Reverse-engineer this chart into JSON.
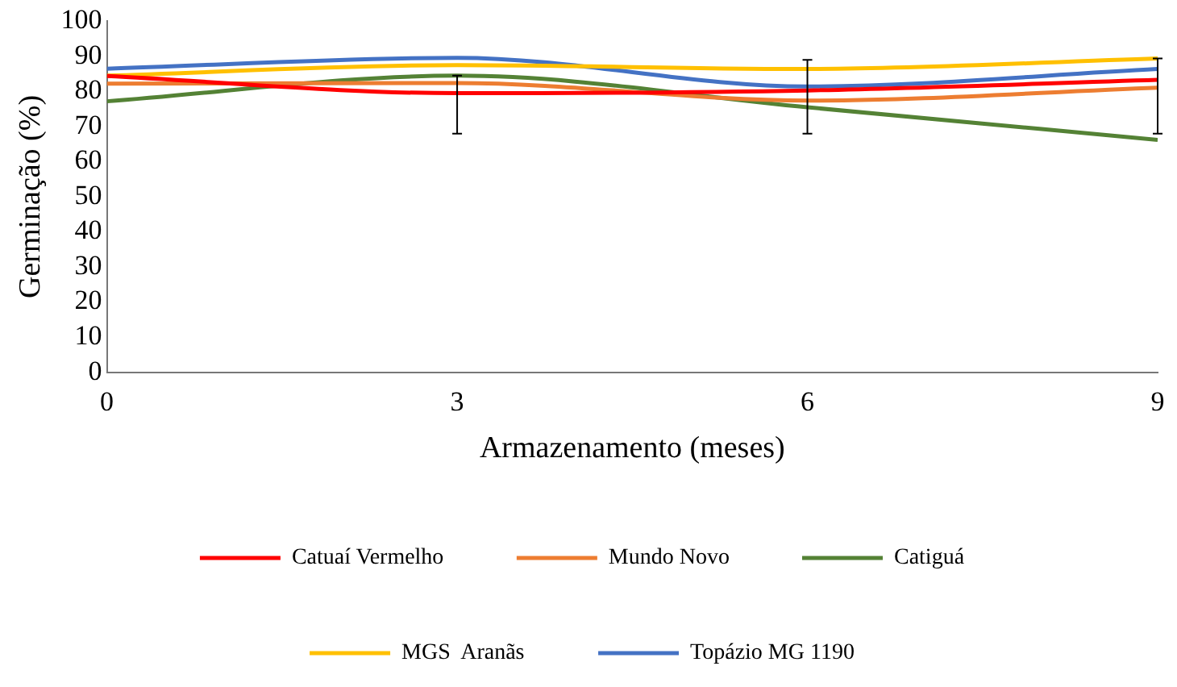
{
  "chart_data": {
    "type": "line",
    "xlabel": "Armazenamento (meses)",
    "ylabel": "Germinação (%)",
    "x": [
      0,
      3,
      6,
      9
    ],
    "xlim": [
      0,
      9
    ],
    "xticks": [
      0,
      3,
      6,
      9
    ],
    "ylim": [
      0,
      100
    ],
    "yticks": [
      0,
      10,
      20,
      30,
      40,
      50,
      60,
      70,
      80,
      90,
      100
    ],
    "grid": false,
    "legend": "bottom",
    "marker": "none",
    "series": [
      {
        "name": "Catuaí Vermelho",
        "color": "#ff0000",
        "values": [
          84.4,
          79.5,
          80.3,
          83.3
        ],
        "errors": [
          null,
          [
            68,
            84.5
          ],
          [
            68,
            89
          ],
          [
            68,
            89.4
          ]
        ]
      },
      {
        "name": "Mundo Novo",
        "color": "#ed7d31",
        "values": [
          82.2,
          82.4,
          77.4,
          81.1
        ]
      },
      {
        "name": "Catiguá",
        "color": "#548235",
        "values": [
          77.2,
          84.5,
          75.5,
          66.2
        ]
      },
      {
        "name": "MGS  Aranãs",
        "color": "#ffc000",
        "values": [
          84.5,
          87.5,
          86.4,
          89.4
        ]
      },
      {
        "name": "Topázio MG 1190",
        "color": "#4472c4",
        "values": [
          86.5,
          89.6,
          81.4,
          86.4
        ]
      }
    ]
  }
}
